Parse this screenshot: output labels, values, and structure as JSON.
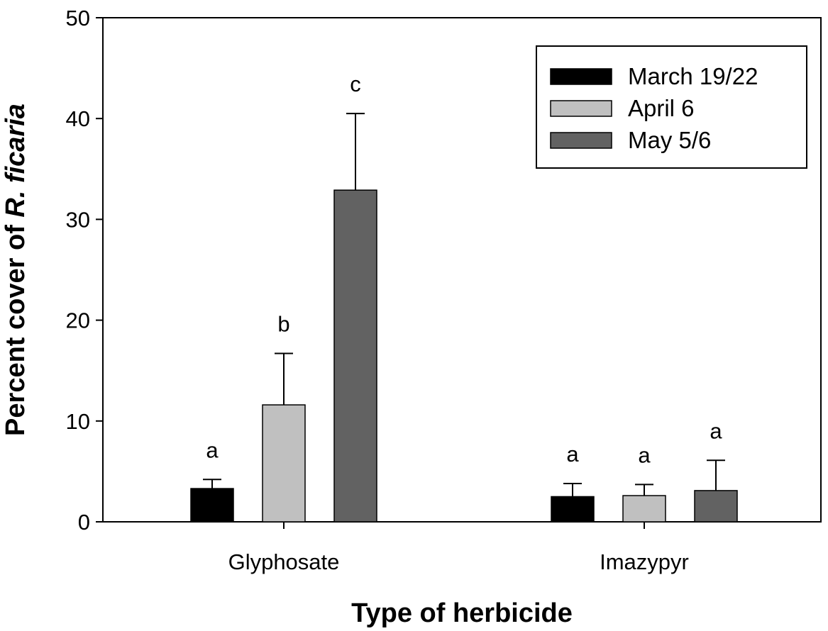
{
  "chart_data": {
    "type": "bar",
    "xlabel": "Type of herbicide",
    "ylabel": "Percent cover of R. ficaria",
    "ylabel_parts": {
      "prefix": "Percent cover of ",
      "italic": "R. ficaria"
    },
    "ylim": [
      0,
      50
    ],
    "yticks": [
      0,
      10,
      20,
      30,
      40,
      50
    ],
    "categories": [
      "Glyphosate",
      "Imazypyr"
    ],
    "legend_position": "top-right",
    "grid": false,
    "series": [
      {
        "name": "March 19/22",
        "color": "#000000",
        "values": [
          3.3,
          2.5
        ],
        "errors": [
          0.9,
          1.3
        ],
        "letters": [
          "a",
          "a"
        ]
      },
      {
        "name": "April 6",
        "color": "#c0c0c0",
        "values": [
          11.6,
          2.6
        ],
        "errors": [
          5.1,
          1.1
        ],
        "letters": [
          "b",
          "a"
        ]
      },
      {
        "name": "May 5/6",
        "color": "#626262",
        "values": [
          32.9,
          3.1
        ],
        "errors": [
          7.6,
          3.0
        ],
        "letters": [
          "c",
          "a"
        ]
      }
    ]
  }
}
